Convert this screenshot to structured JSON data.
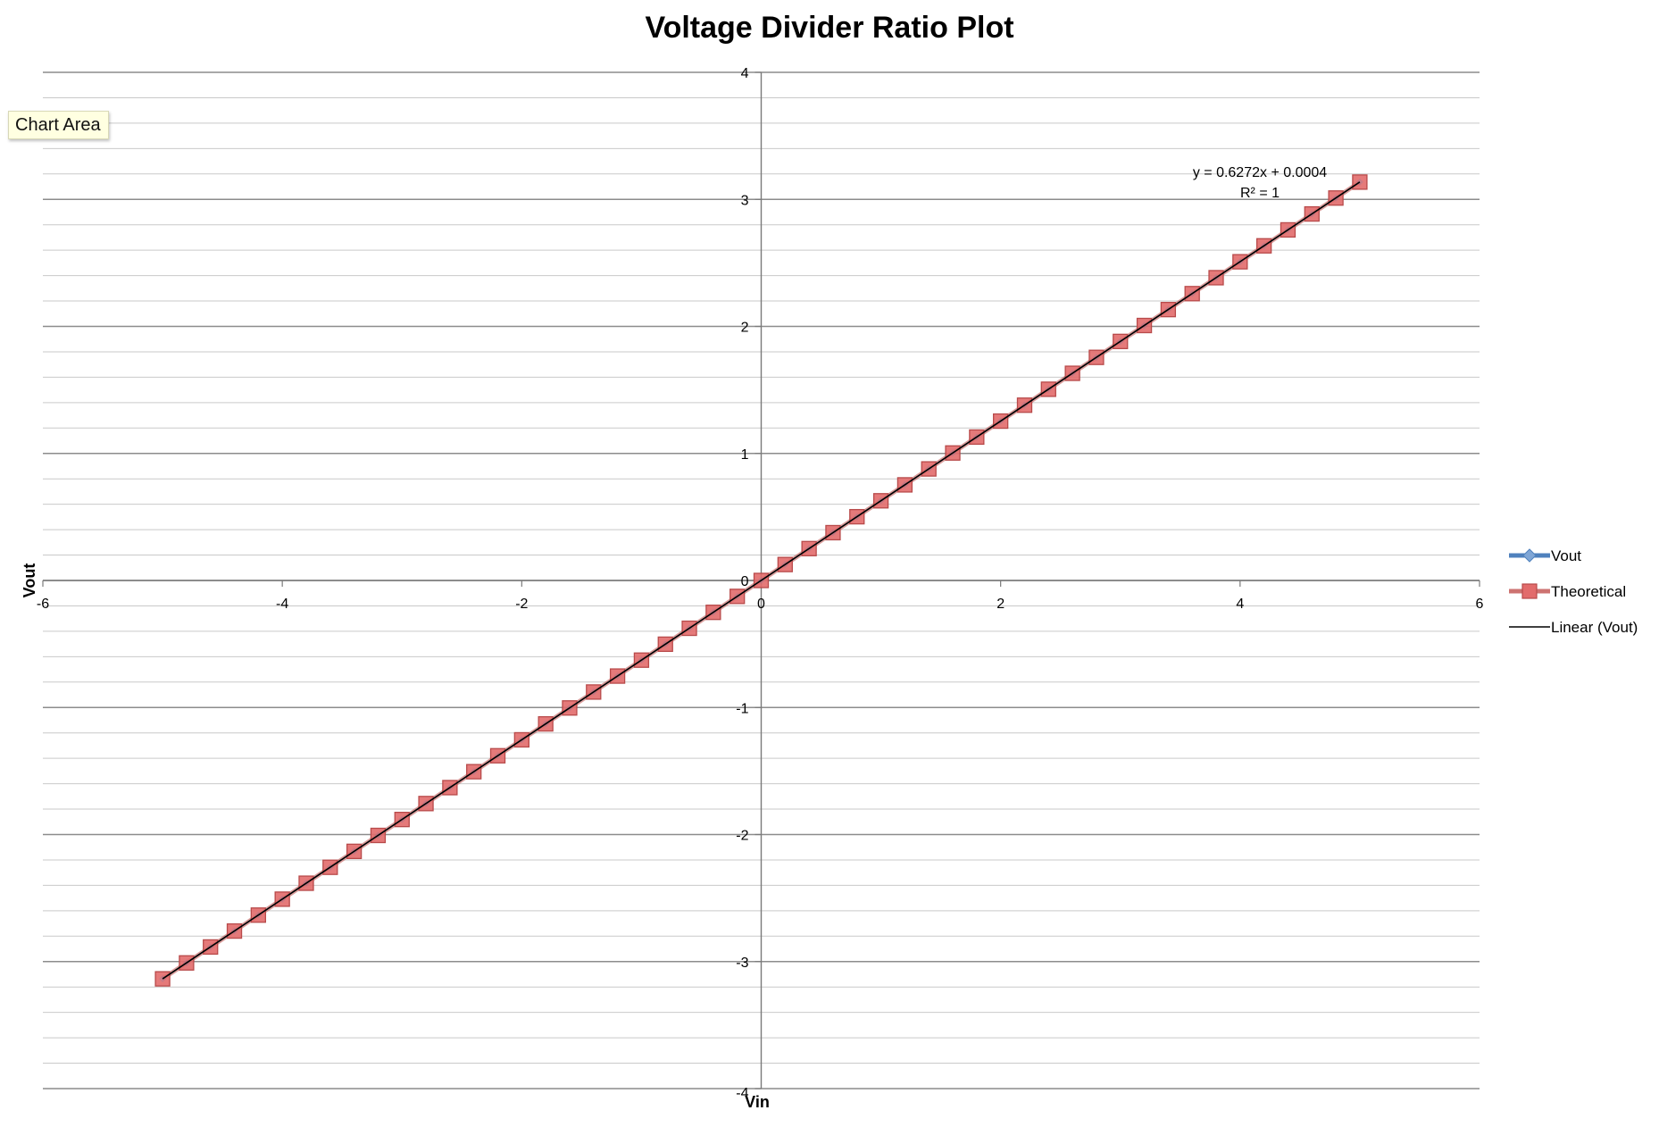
{
  "tooltip": {
    "label": "Chart Area"
  },
  "chart_data": {
    "type": "scatter",
    "title": "Voltage Divider Ratio Plot",
    "xlabel": "Vin",
    "ylabel": "Vout",
    "xlim": [
      -6,
      6
    ],
    "ylim": [
      -4,
      4
    ],
    "x_major_step": 2,
    "y_major_step": 1,
    "y_minor_step": 0.2,
    "grid": true,
    "legend_position": "right",
    "x_ticks": [
      "-6",
      "-4",
      "-2",
      "0",
      "2",
      "4",
      "6"
    ],
    "y_ticks": [
      "-4",
      "-3",
      "-2",
      "-1",
      "0",
      "1",
      "2",
      "3",
      "4"
    ],
    "series": [
      {
        "name": "Vout",
        "color": "#4f81bd",
        "marker": "diamond",
        "x_start": -5.0,
        "x_end": 5.0,
        "x_step": 0.2,
        "slope": 0.6272,
        "intercept": 0.0004
      },
      {
        "name": "Theoretical",
        "color": "#e26b6b",
        "marker": "square",
        "x_start": -5.0,
        "x_end": 5.0,
        "x_step": 0.2,
        "slope": 0.6272,
        "intercept": 0.0
      }
    ],
    "trendline": {
      "name": "Linear (Vout)",
      "color": "#000000",
      "slope": 0.6272,
      "intercept": 0.0004,
      "x_range": [
        -5,
        5
      ],
      "equation": "y = 0.6272x + 0.0004",
      "r_squared": "R² = 1"
    }
  }
}
